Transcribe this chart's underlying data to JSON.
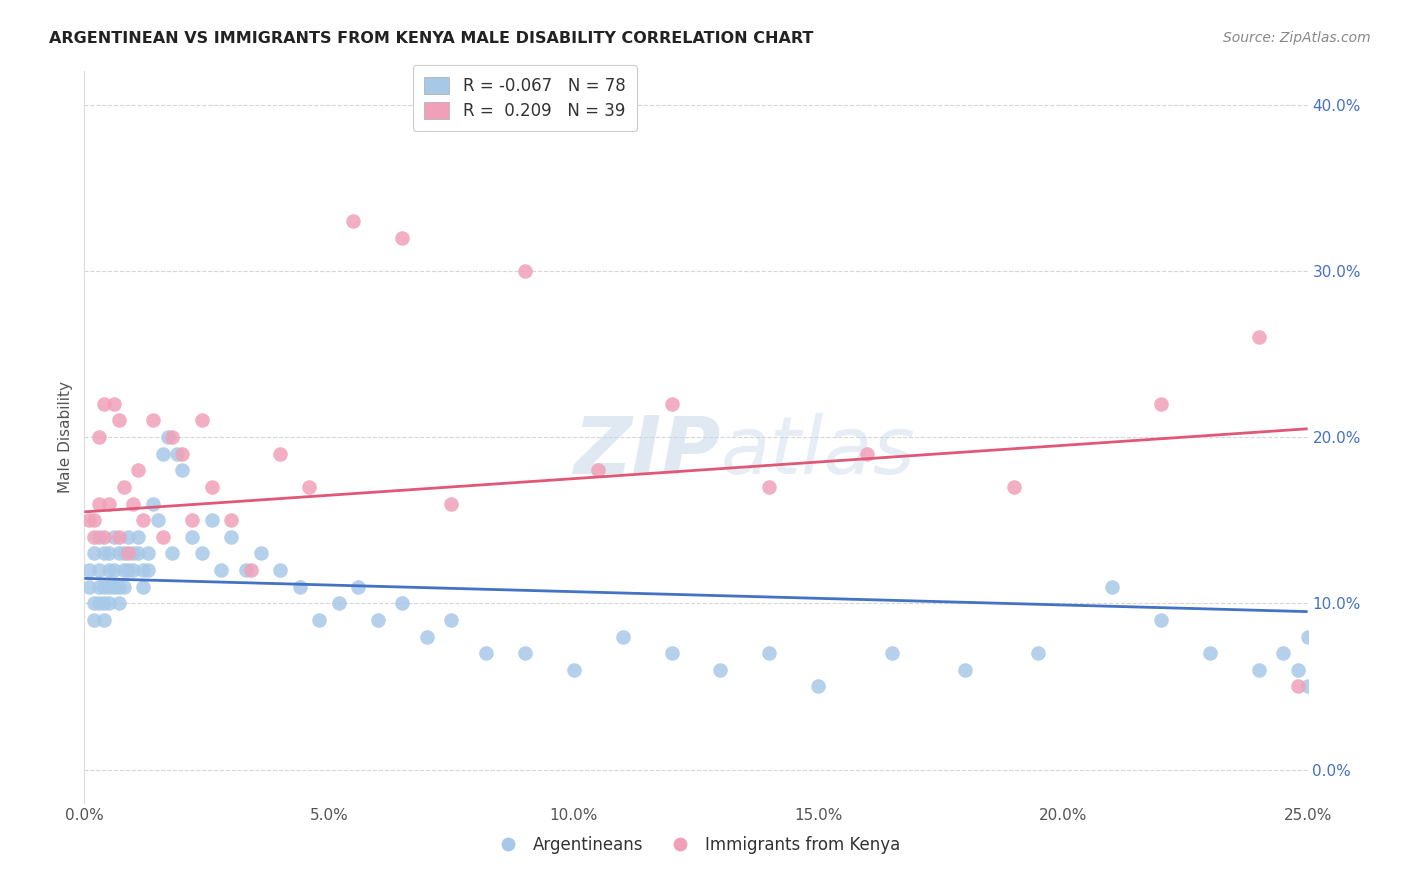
{
  "title": "ARGENTINEAN VS IMMIGRANTS FROM KENYA MALE DISABILITY CORRELATION CHART",
  "source": "Source: ZipAtlas.com",
  "ylabel": "Male Disability",
  "xlim": [
    0.0,
    0.25
  ],
  "ylim": [
    -0.02,
    0.42
  ],
  "yticks": [
    0.0,
    0.1,
    0.2,
    0.3,
    0.4
  ],
  "xticks": [
    0.0,
    0.05,
    0.1,
    0.15,
    0.2,
    0.25
  ],
  "watermark_zip": "ZIP",
  "watermark_atlas": "atlas",
  "arg_color": "#a8c8e8",
  "kenya_color": "#f0a0b8",
  "arg_line_color": "#4472c4",
  "kenya_line_color": "#e05878",
  "background_color": "#ffffff",
  "grid_color": "#cccccc",
  "legend_blue_label": "R = -0.067   N = 78",
  "legend_pink_label": "R =  0.209   N = 39",
  "bottom_label_arg": "Argentineans",
  "bottom_label_kenya": "Immigrants from Kenya",
  "arg_scatter_x": [
    0.001,
    0.001,
    0.002,
    0.002,
    0.002,
    0.003,
    0.003,
    0.003,
    0.003,
    0.004,
    0.004,
    0.004,
    0.004,
    0.005,
    0.005,
    0.005,
    0.005,
    0.006,
    0.006,
    0.006,
    0.007,
    0.007,
    0.007,
    0.008,
    0.008,
    0.008,
    0.009,
    0.009,
    0.01,
    0.01,
    0.011,
    0.011,
    0.012,
    0.012,
    0.013,
    0.013,
    0.014,
    0.015,
    0.016,
    0.017,
    0.018,
    0.019,
    0.02,
    0.022,
    0.024,
    0.026,
    0.028,
    0.03,
    0.033,
    0.036,
    0.04,
    0.044,
    0.048,
    0.052,
    0.056,
    0.06,
    0.065,
    0.07,
    0.075,
    0.082,
    0.09,
    0.1,
    0.11,
    0.12,
    0.13,
    0.14,
    0.15,
    0.165,
    0.18,
    0.195,
    0.21,
    0.22,
    0.23,
    0.24,
    0.245,
    0.248,
    0.25,
    0.25
  ],
  "arg_scatter_y": [
    0.12,
    0.11,
    0.1,
    0.13,
    0.09,
    0.12,
    0.11,
    0.1,
    0.14,
    0.13,
    0.11,
    0.1,
    0.09,
    0.13,
    0.12,
    0.11,
    0.1,
    0.14,
    0.12,
    0.11,
    0.13,
    0.11,
    0.1,
    0.13,
    0.12,
    0.11,
    0.14,
    0.12,
    0.13,
    0.12,
    0.14,
    0.13,
    0.12,
    0.11,
    0.13,
    0.12,
    0.16,
    0.15,
    0.19,
    0.2,
    0.13,
    0.19,
    0.18,
    0.14,
    0.13,
    0.15,
    0.12,
    0.14,
    0.12,
    0.13,
    0.12,
    0.11,
    0.09,
    0.1,
    0.11,
    0.09,
    0.1,
    0.08,
    0.09,
    0.07,
    0.07,
    0.06,
    0.08,
    0.07,
    0.06,
    0.07,
    0.05,
    0.07,
    0.06,
    0.07,
    0.11,
    0.09,
    0.07,
    0.06,
    0.07,
    0.06,
    0.05,
    0.08
  ],
  "kenya_scatter_x": [
    0.001,
    0.002,
    0.002,
    0.003,
    0.003,
    0.004,
    0.004,
    0.005,
    0.006,
    0.007,
    0.007,
    0.008,
    0.009,
    0.01,
    0.011,
    0.012,
    0.014,
    0.016,
    0.018,
    0.02,
    0.022,
    0.024,
    0.026,
    0.03,
    0.034,
    0.04,
    0.046,
    0.055,
    0.065,
    0.075,
    0.09,
    0.105,
    0.12,
    0.14,
    0.16,
    0.19,
    0.22,
    0.24,
    0.248
  ],
  "kenya_scatter_y": [
    0.15,
    0.15,
    0.14,
    0.16,
    0.2,
    0.22,
    0.14,
    0.16,
    0.22,
    0.21,
    0.14,
    0.17,
    0.13,
    0.16,
    0.18,
    0.15,
    0.21,
    0.14,
    0.2,
    0.19,
    0.15,
    0.21,
    0.17,
    0.15,
    0.12,
    0.19,
    0.17,
    0.33,
    0.32,
    0.16,
    0.3,
    0.18,
    0.22,
    0.17,
    0.19,
    0.17,
    0.22,
    0.26,
    0.05
  ],
  "arg_line_x": [
    0.0,
    0.25
  ],
  "arg_line_y": [
    0.115,
    0.095
  ],
  "kenya_line_x": [
    0.0,
    0.25
  ],
  "kenya_line_y": [
    0.155,
    0.205
  ]
}
